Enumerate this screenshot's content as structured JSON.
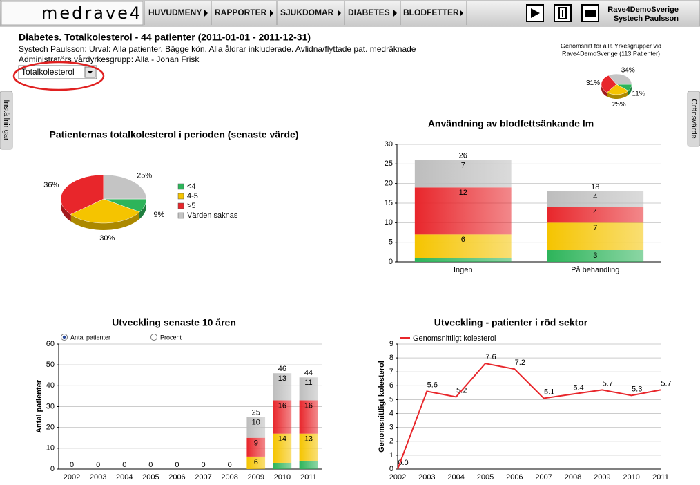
{
  "header": {
    "logo": "medrave4",
    "nav": [
      "HUVUDMENY",
      "RAPPORTER",
      "SJUKDOMAR",
      "DIABETES",
      "BLODFETTER"
    ],
    "unit": "Rave4DemoSverige",
    "user": "Systech Paulsson"
  },
  "report": {
    "title": "Diabetes. Totalkolesterol - 44 patienter (2011-01-01 - 2011-12-31)",
    "lines": [
      "Systech Paulsson: Urval: Alla patienter. Bägge kön, Alla åldrar inkluderade. Avlidna/flyttade pat. medräknade",
      "Administratörs vårdyrkesgrupp: Alla - Johan Frisk"
    ],
    "select": "Totalkolesterol"
  },
  "side_tabs": [
    "Inställningar",
    "Gränsvärde"
  ],
  "chart_data": [
    {
      "type": "pie",
      "title": [
        "Genomsnitt för alla Yrkesgrupper vid",
        "Rave4DemoSverige (113 Patienter)"
      ],
      "values": [
        11,
        25,
        31,
        34
      ],
      "value_labels": [
        "11%",
        "25%",
        "31%",
        "34%"
      ],
      "colors": [
        "#2db45a",
        "#f5c400",
        "#e8262b",
        "#c4c4c4"
      ]
    },
    {
      "type": "pie",
      "title": "Patienternas totalkolesterol i perioden (senaste värde)",
      "categories": [
        "<4",
        "4-5",
        ">5",
        "Värden saknas"
      ],
      "values": [
        9,
        30,
        36,
        25
      ],
      "value_labels": [
        "9%",
        "30%",
        "36%",
        "25%"
      ],
      "colors": [
        "#2db45a",
        "#f5c400",
        "#e8262b",
        "#c4c4c4"
      ],
      "legend": "right"
    },
    {
      "type": "stacked_bar",
      "title": "Användning av blodfettsänkande lm",
      "categories": [
        "Ingen",
        "På behandling"
      ],
      "series": [
        {
          "color": "#2db45a",
          "values": [
            1,
            3
          ]
        },
        {
          "color": "#f5c400",
          "values": [
            6,
            7
          ]
        },
        {
          "color": "#e8262b",
          "values": [
            12,
            4
          ]
        },
        {
          "color": "#bdbdbd",
          "values": [
            7,
            4
          ]
        }
      ],
      "totals": [
        26,
        18
      ],
      "ylim": [
        0,
        30
      ],
      "yticks": [
        0,
        5,
        10,
        15,
        20,
        25,
        30
      ],
      "grid": true
    },
    {
      "type": "stacked_bar",
      "title": "Utveckling senaste 10 åren",
      "options": [
        "Antal patienter",
        "Procent"
      ],
      "selected": 0,
      "ylabel": "Antal patienter",
      "categories": [
        "2002",
        "2003",
        "2004",
        "2005",
        "2006",
        "2007",
        "2008",
        "2009",
        "2010",
        "2011"
      ],
      "series": [
        {
          "color": "#2db45a",
          "values": [
            0,
            0,
            0,
            0,
            0,
            0,
            0,
            0,
            3,
            4
          ]
        },
        {
          "color": "#f5c400",
          "values": [
            0,
            0,
            0,
            0,
            0,
            0,
            0,
            6,
            14,
            13
          ]
        },
        {
          "color": "#e8262b",
          "values": [
            0,
            0,
            0,
            0,
            0,
            0,
            0,
            9,
            16,
            16
          ]
        },
        {
          "color": "#bdbdbd",
          "values": [
            0,
            0,
            0,
            0,
            0,
            0,
            0,
            10,
            13,
            11
          ]
        }
      ],
      "totals": [
        0,
        0,
        0,
        0,
        0,
        0,
        0,
        25,
        46,
        44
      ],
      "ylim": [
        0,
        60
      ],
      "yticks": [
        0,
        10,
        20,
        30,
        40,
        50,
        60
      ],
      "grid": true
    },
    {
      "type": "line",
      "title": "Utveckling - patienter i röd sektor",
      "ylabel": "Genomsnittligt kolesterol",
      "categories": [
        "2002",
        "2003",
        "2004",
        "2005",
        "2006",
        "2007",
        "2008",
        "2009",
        "2010",
        "2011"
      ],
      "series": [
        {
          "name": "Genomsnittligt kolesterol",
          "color": "#e8262b",
          "values": [
            0,
            5.6,
            5.2,
            7.6,
            7.2,
            5.1,
            5.4,
            5.7,
            5.3,
            5.7
          ],
          "value_labels": [
            "0.0",
            "5.6",
            "5.2",
            "7.6",
            "7.2",
            "5.1",
            "5.4",
            "5.7",
            "5.3",
            "5.7"
          ]
        }
      ],
      "ylim": [
        0,
        9
      ],
      "yticks": [
        0,
        1,
        2,
        3,
        4,
        5,
        6,
        7,
        8,
        9
      ],
      "grid": true
    }
  ]
}
